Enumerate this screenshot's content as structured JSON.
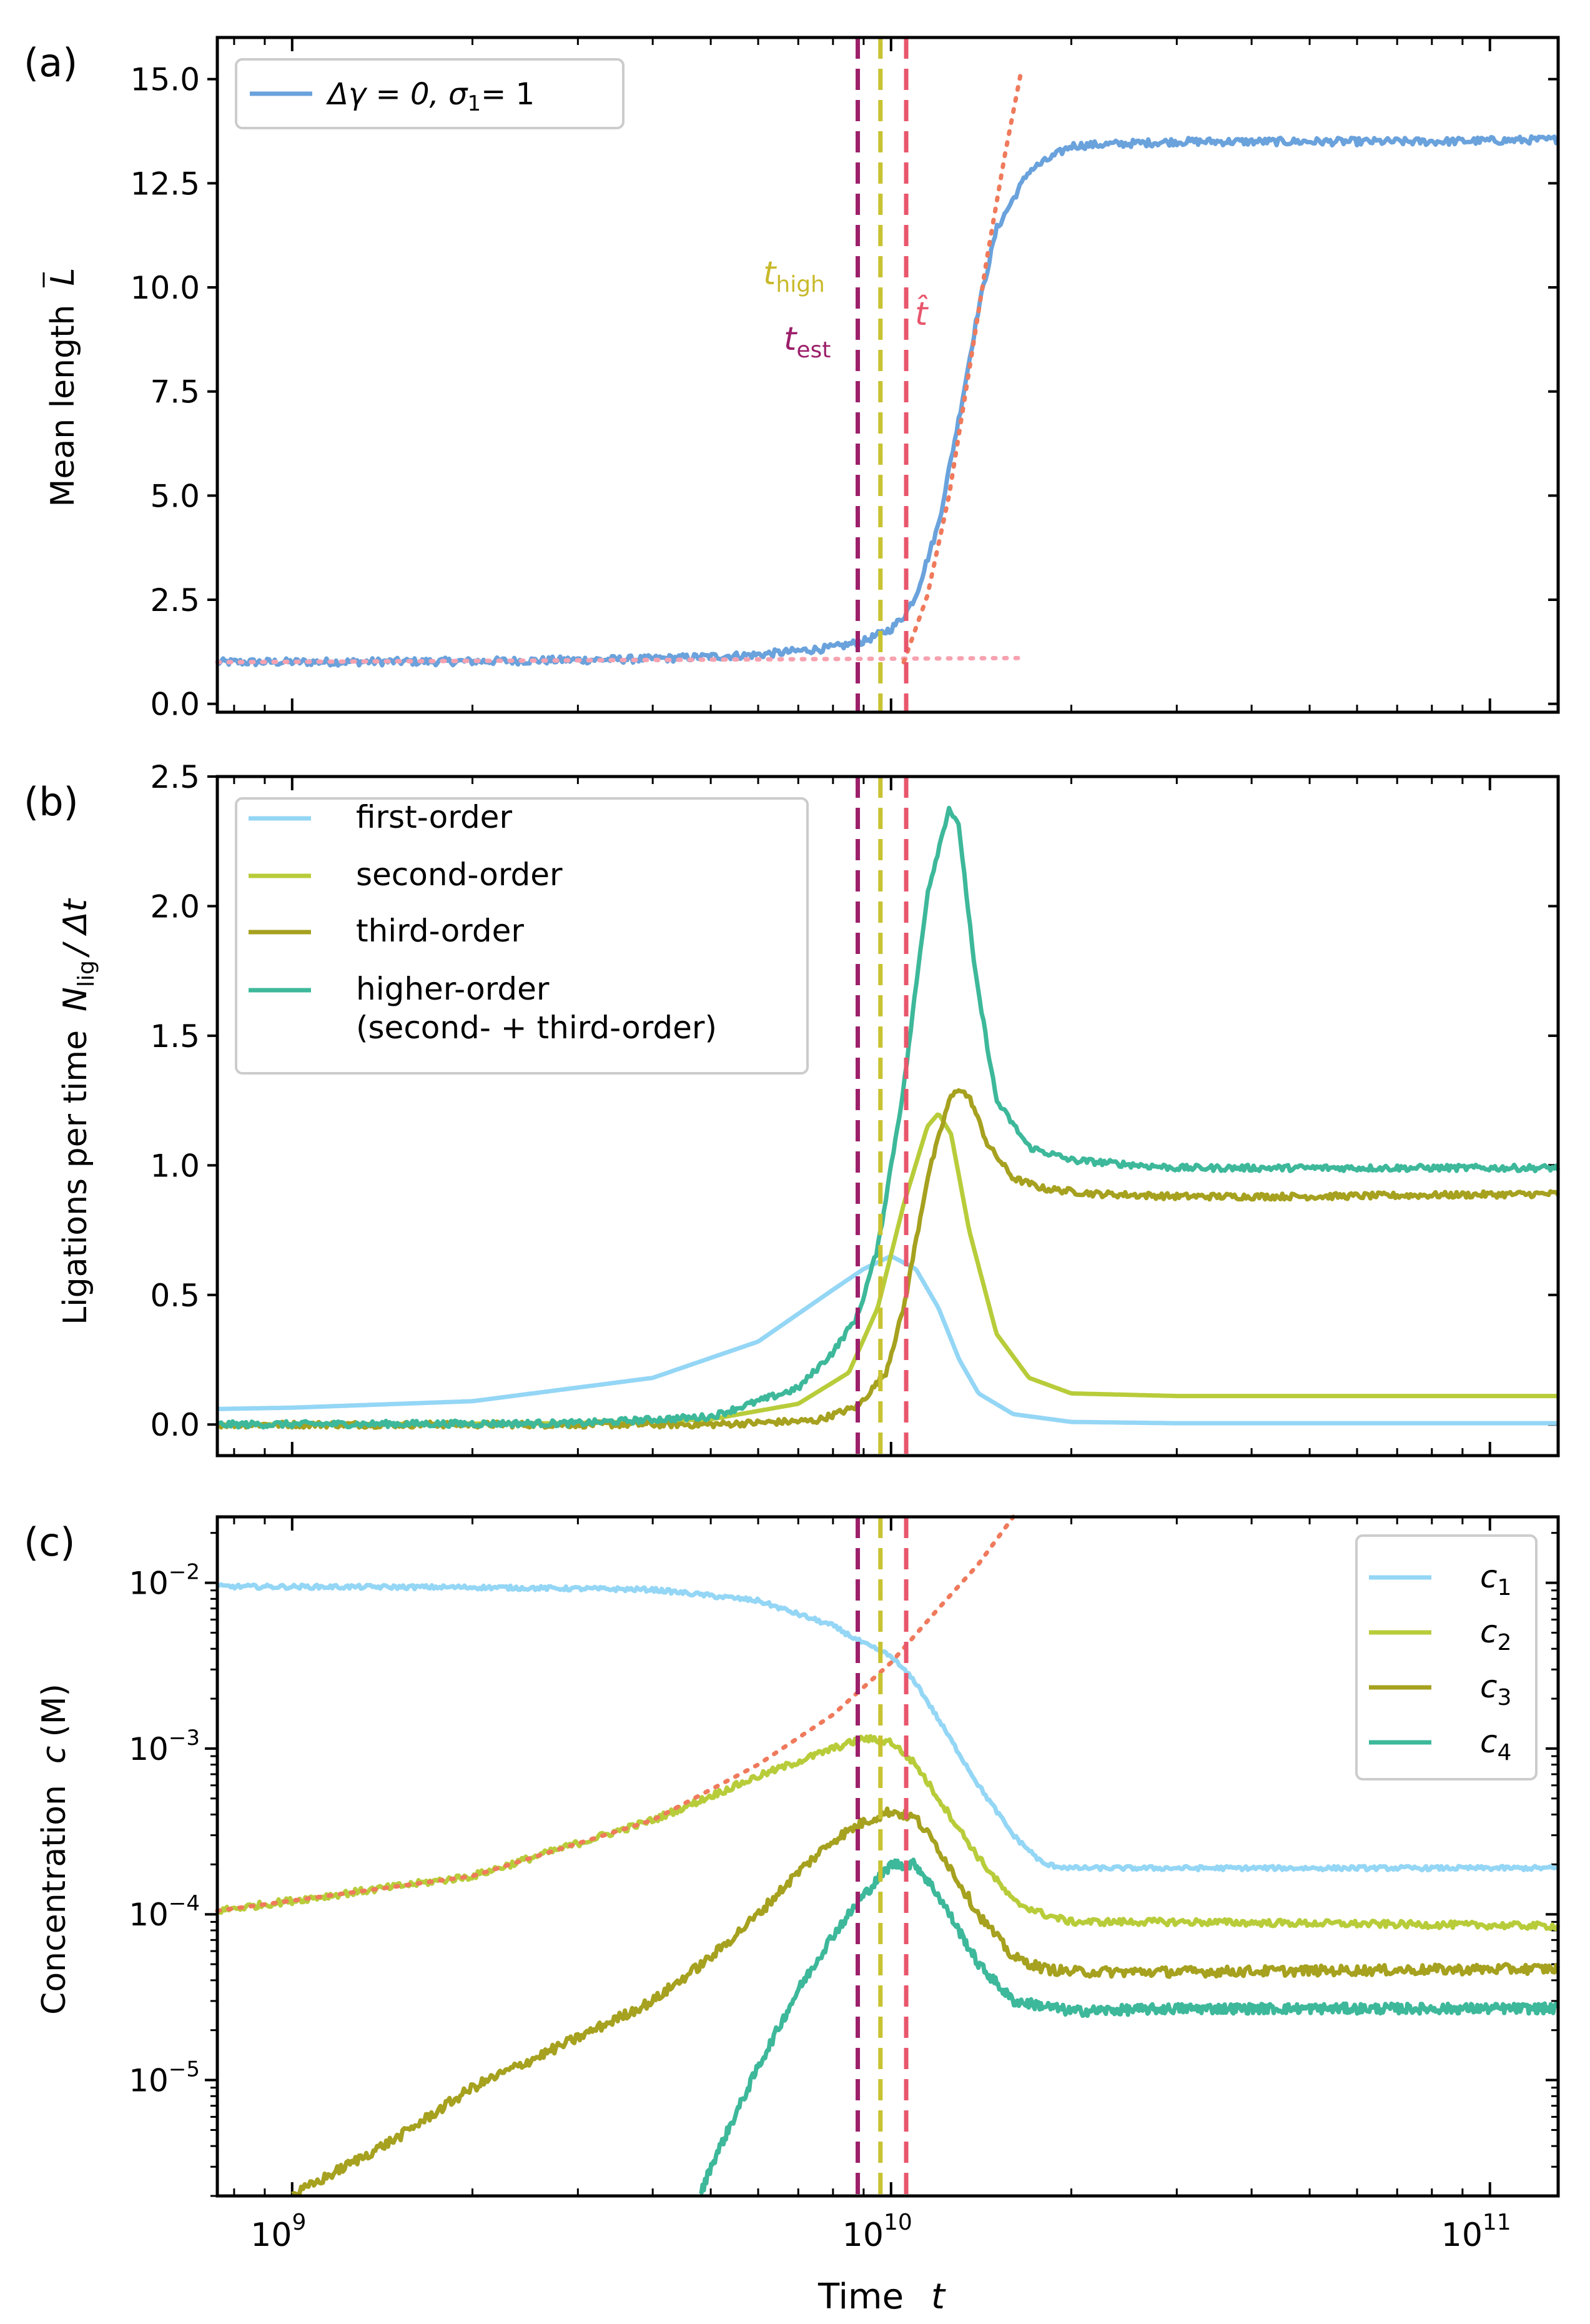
{
  "figure": {
    "x_axis": {
      "label": "Time",
      "var": "t",
      "type": "log",
      "xlim": [
        750000000,
        130000000000
      ],
      "ticks": [
        {
          "value": 1000000000.0,
          "exp": "9"
        },
        {
          "value": 10000000000.0,
          "exp": "10"
        },
        {
          "value": 100000000000.0,
          "exp": "11"
        }
      ]
    },
    "vlines": [
      {
        "name": "t_est",
        "x": 8800000000,
        "color": "#9c1f6a"
      },
      {
        "name": "t_high",
        "x": 9600000000,
        "color": "#c8c231"
      },
      {
        "name": "t_hat",
        "x": 10600000000,
        "color": "#e8566c"
      }
    ]
  },
  "panels": {
    "a": {
      "label": "(a)",
      "ylabel": "Mean length",
      "ylabel_sym": "L",
      "legend": {
        "delta": "Δγ = 0,",
        "sigma": "σ",
        "sigma_sub": "1",
        "eq": "= 1"
      },
      "ann_high": "t",
      "ann_high_sub": "high",
      "ann_est": "t",
      "ann_est_sub": "est",
      "ann_hat": "t̂"
    },
    "b": {
      "label": "(b)",
      "ylabel": "Ligations per time",
      "ylabel_n": "N",
      "ylabel_sub": "lig",
      "ylabel_tail": "/ Δt"
    },
    "c": {
      "label": "(c)",
      "ylabel": "Concentration",
      "ylabel_sym": "c",
      "ylabel_unit": "(M)"
    }
  },
  "chart_data": [
    {
      "panel": "a",
      "type": "line",
      "xscale": "log",
      "ylim": [
        -0.2,
        16.0
      ],
      "yticks": [
        "0.0",
        "2.5",
        "5.0",
        "7.5",
        "10.0",
        "12.5",
        "15.0"
      ],
      "series": [
        {
          "name": "Δγ = 0, σ1 = 1",
          "color": "#6aa2dc",
          "x": [
            750000000.0,
            2000000000.0,
            4000000000.0,
            6000000000.0,
            8000000000.0,
            9000000000.0,
            10000000000.0,
            10500000000.0,
            11000000000.0,
            12000000000.0,
            13000000000.0,
            14000000000.0,
            15000000000.0,
            17000000000.0,
            20000000000.0,
            30000000000.0,
            50000000000.0,
            80000000000.0,
            130000000000.0
          ],
          "y": [
            1.0,
            1.02,
            1.08,
            1.18,
            1.35,
            1.5,
            1.8,
            2.1,
            2.6,
            4.3,
            6.9,
            9.5,
            11.4,
            12.8,
            13.4,
            13.5,
            13.5,
            13.5,
            13.55
          ],
          "noise": 0.09
        },
        {
          "name": "baseline fit",
          "style": "dotted",
          "color": "#f7a2b0",
          "x": [
            750000000.0,
            16500000000.0
          ],
          "y": [
            1.0,
            1.1
          ]
        },
        {
          "name": "exponential fit",
          "style": "dotted",
          "color": "#ef7a5c",
          "x": [
            10500000000.0,
            11500000000.0,
            12500000000.0,
            13500000000.0,
            14500000000.0,
            15500000000.0,
            16500000000.0
          ],
          "y": [
            1.0,
            2.6,
            5.0,
            8.0,
            10.8,
            13.2,
            15.2
          ]
        }
      ]
    },
    {
      "panel": "b",
      "type": "line",
      "xscale": "log",
      "ylim": [
        -0.12,
        2.5
      ],
      "yticks": [
        "0.0",
        "0.5",
        "1.0",
        "1.5",
        "2.0",
        "2.5"
      ],
      "series": [
        {
          "name": "first-order",
          "color": "#94d6f5",
          "x": [
            750000000.0,
            1000000000.0,
            2000000000.0,
            4000000000.0,
            6000000000.0,
            8000000000.0,
            9000000000.0,
            10000000000.0,
            11000000000.0,
            12000000000.0,
            13000000000.0,
            14000000000.0,
            16000000000.0,
            20000000000.0,
            30000000000.0,
            130000000000.0
          ],
          "y": [
            0.06,
            0.065,
            0.09,
            0.18,
            0.32,
            0.52,
            0.6,
            0.65,
            0.6,
            0.45,
            0.25,
            0.12,
            0.04,
            0.01,
            0.005,
            0.005
          ]
        },
        {
          "name": "second-order",
          "color": "#b8cc3a",
          "x": [
            750000000.0,
            3000000000.0,
            5000000000.0,
            7000000000.0,
            8500000000.0,
            9500000000.0,
            10500000000.0,
            11500000000.0,
            12000000000.0,
            12600000000.0,
            13500000000.0,
            15000000000.0,
            17000000000.0,
            20000000000.0,
            30000000000.0,
            130000000000.0
          ],
          "y": [
            0.0,
            0.005,
            0.02,
            0.08,
            0.2,
            0.45,
            0.85,
            1.15,
            1.2,
            1.12,
            0.75,
            0.35,
            0.18,
            0.12,
            0.11,
            0.11
          ]
        },
        {
          "name": "third-order",
          "color": "#a6a11f",
          "x": [
            750000000.0,
            5000000000.0,
            7500000000.0,
            8800000000.0,
            9800000000.0,
            10500000000.0,
            11500000000.0,
            12500000000.0,
            13000000000.0,
            13600000000.0,
            14500000000.0,
            16000000000.0,
            18000000000.0,
            22000000000.0,
            30000000000.0,
            50000000000.0,
            130000000000.0
          ],
          "y": [
            0.0,
            0.0,
            0.015,
            0.07,
            0.2,
            0.45,
            0.95,
            1.25,
            1.3,
            1.25,
            1.08,
            0.95,
            0.91,
            0.89,
            0.88,
            0.88,
            0.89
          ],
          "noise": 0.012
        },
        {
          "name": "higher-order",
          "name_line2": "(second- + third-order)",
          "color": "#3db89a",
          "x": [
            750000000.0,
            3000000000.0,
            5000000000.0,
            7000000000.0,
            8000000000.0,
            8800000000.0,
            9500000000.0,
            10500000000.0,
            11500000000.0,
            12500000000.0,
            13000000000.0,
            13800000000.0,
            15000000000.0,
            17000000000.0,
            20000000000.0,
            30000000000.0,
            50000000000.0,
            130000000000.0
          ],
          "y": [
            0.0,
            0.005,
            0.03,
            0.14,
            0.28,
            0.42,
            0.68,
            1.3,
            2.05,
            2.38,
            2.3,
            1.75,
            1.25,
            1.07,
            1.02,
            0.99,
            0.99,
            0.99
          ],
          "noise": 0.012
        }
      ]
    },
    {
      "panel": "c",
      "type": "line",
      "xscale": "log",
      "yscale": "log",
      "ylim": [
        2e-06,
        0.025
      ],
      "yticks": [
        {
          "value": 1e-05,
          "exp": "−5"
        },
        {
          "value": 0.0001,
          "exp": "−4"
        },
        {
          "value": 0.001,
          "exp": "−3"
        },
        {
          "value": 0.01,
          "exp": "−2"
        }
      ],
      "series": [
        {
          "name": "c",
          "sub": "1",
          "color": "#94d6f5",
          "x": [
            750000000.0,
            2000000000.0,
            4000000000.0,
            6000000000.0,
            8000000000.0,
            9000000000.0,
            10000000000.0,
            11000000000.0,
            12000000000.0,
            14000000000.0,
            16000000000.0,
            18000000000.0,
            20000000000.0,
            30000000000.0,
            130000000000.0
          ],
          "y": [
            0.0095,
            0.0094,
            0.0091,
            0.0078,
            0.0055,
            0.0043,
            0.0036,
            0.0025,
            0.0015,
            0.0006,
            0.0003,
            0.0002,
            0.00019,
            0.00019,
            0.00019
          ],
          "noise": 0.025
        },
        {
          "name": "c",
          "sub": "2",
          "color": "#b8cc3a",
          "x": [
            750000000.0,
            2000000000.0,
            4000000000.0,
            6000000000.0,
            8000000000.0,
            9000000000.0,
            10000000000.0,
            11000000000.0,
            12000000000.0,
            14000000000.0,
            16000000000.0,
            18000000000.0,
            20000000000.0,
            30000000000.0,
            130000000000.0
          ],
          "y": [
            0.000105,
            0.00017,
            0.00037,
            0.00068,
            0.001,
            0.00115,
            0.0011,
            0.0008,
            0.0005,
            0.00022,
            0.00012,
            0.0001,
            9e-05,
            9e-05,
            8.5e-05
          ],
          "noise": 0.04
        },
        {
          "name": "c",
          "sub": "3",
          "color": "#a6a11f",
          "x": [
            1000000000.0,
            1500000000.0,
            2000000000.0,
            3000000000.0,
            4000000000.0,
            5000000000.0,
            6000000000.0,
            7000000000.0,
            8000000000.0,
            9000000000.0,
            10000000000.0,
            11000000000.0,
            12000000000.0,
            14000000000.0,
            16000000000.0,
            18000000000.0,
            20000000000.0,
            30000000000.0,
            130000000000.0
          ],
          "y": [
            2e-06,
            4.5e-06,
            9e-06,
            1.8e-05,
            3e-05,
            5.5e-05,
            0.0001,
            0.00018,
            0.00028,
            0.00036,
            0.00042,
            0.00038,
            0.00025,
            0.0001,
            5.5e-05,
            4.7e-05,
            4.5e-05,
            4.5e-05,
            4.7e-05
          ],
          "noise": 0.06
        },
        {
          "name": "c",
          "sub": "4",
          "color": "#3db89a",
          "x": [
            4800000000.0,
            5000000000.0,
            6000000000.0,
            7000000000.0,
            8000000000.0,
            9000000000.0,
            10000000000.0,
            11000000000.0,
            12000000000.0,
            14000000000.0,
            16000000000.0,
            18000000000.0,
            20000000000.0,
            30000000000.0,
            130000000000.0
          ],
          "y": [
            2e-06,
            3e-06,
            1.2e-05,
            3.5e-05,
            7.5e-05,
            0.00013,
            0.0002,
            0.0002,
            0.00013,
            5e-05,
            3e-05,
            2.8e-05,
            2.6e-05,
            2.7e-05,
            2.7e-05
          ],
          "noise": 0.06
        },
        {
          "name": "c2 fit",
          "style": "dotted",
          "color": "#ef7a5c",
          "x": [
            750000000.0,
            2000000000.0,
            4000000000.0,
            6000000000.0,
            8000000000.0,
            10000000000.0,
            12000000000.0,
            14000000000.0,
            16000000000.0
          ],
          "y": [
            0.000105,
            0.00017,
            0.00037,
            0.0008,
            0.0016,
            0.0033,
            0.007,
            0.013,
            0.025
          ]
        }
      ]
    }
  ]
}
